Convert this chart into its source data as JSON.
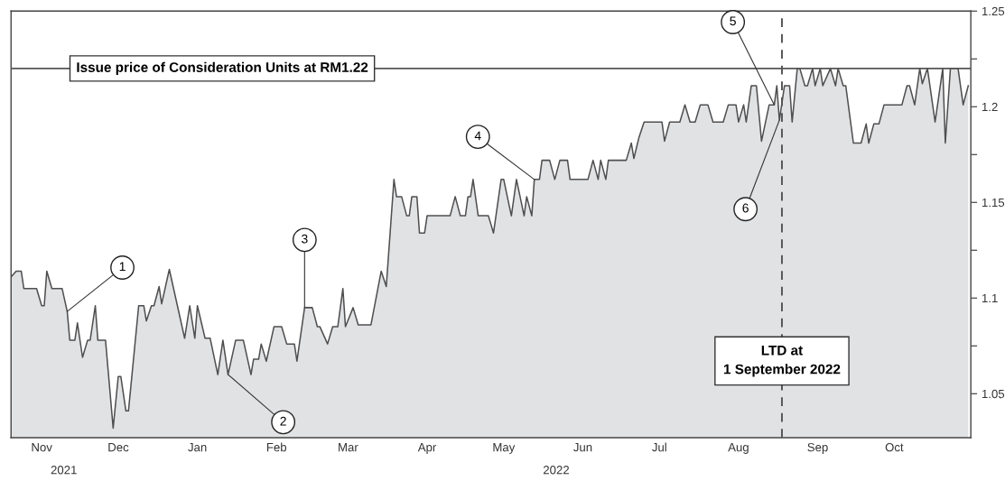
{
  "chart_data": {
    "type": "area",
    "x": [
      "2021-11-03",
      "2021-11-05",
      "2021-11-07",
      "2021-11-08",
      "2021-11-13",
      "2021-11-15",
      "2021-11-16",
      "2021-11-17",
      "2021-11-19",
      "2021-11-23",
      "2021-11-25",
      "2021-11-26",
      "2021-11-28",
      "2021-11-29",
      "2021-12-01",
      "2021-12-03",
      "2021-12-04",
      "2021-12-06",
      "2021-12-07",
      "2021-12-10",
      "2021-12-13",
      "2021-12-15",
      "2021-12-16",
      "2021-12-18",
      "2021-12-19",
      "2021-12-23",
      "2021-12-25",
      "2021-12-26",
      "2021-12-28",
      "2021-12-29",
      "2021-12-31",
      "2022-01-01",
      "2022-01-04",
      "2022-01-10",
      "2022-01-12",
      "2022-01-14",
      "2022-01-15",
      "2022-01-18",
      "2022-01-20",
      "2022-01-23",
      "2022-01-25",
      "2022-01-27",
      "2022-01-30",
      "2022-02-02",
      "2022-02-05",
      "2022-02-06",
      "2022-02-08",
      "2022-02-09",
      "2022-02-11",
      "2022-02-14",
      "2022-02-17",
      "2022-02-19",
      "2022-02-22",
      "2022-02-23",
      "2022-02-26",
      "2022-03-01",
      "2022-03-03",
      "2022-03-04",
      "2022-03-07",
      "2022-03-09",
      "2022-03-11",
      "2022-03-13",
      "2022-03-14",
      "2022-03-17",
      "2022-03-19",
      "2022-03-24",
      "2022-03-28",
      "2022-03-30",
      "2022-04-02",
      "2022-04-03",
      "2022-04-05",
      "2022-04-07",
      "2022-04-08",
      "2022-04-09",
      "2022-04-11",
      "2022-04-12",
      "2022-04-14",
      "2022-04-15",
      "2022-04-24",
      "2022-04-26",
      "2022-04-28",
      "2022-04-30",
      "2022-05-01",
      "2022-05-02",
      "2022-05-03",
      "2022-05-05",
      "2022-05-09",
      "2022-05-11",
      "2022-05-14",
      "2022-05-15",
      "2022-05-18",
      "2022-05-20",
      "2022-05-23",
      "2022-05-24",
      "2022-05-26",
      "2022-05-27",
      "2022-05-29",
      "2022-05-30",
      "2022-06-02",
      "2022-06-04",
      "2022-06-06",
      "2022-06-09",
      "2022-06-10",
      "2022-06-17",
      "2022-06-19",
      "2022-06-21",
      "2022-06-22",
      "2022-06-24",
      "2022-06-25",
      "2022-07-02",
      "2022-07-04",
      "2022-07-05",
      "2022-07-07",
      "2022-07-09",
      "2022-07-12",
      "2022-07-16",
      "2022-07-17",
      "2022-07-19",
      "2022-07-23",
      "2022-07-25",
      "2022-07-27",
      "2022-07-29",
      "2022-07-31",
      "2022-08-03",
      "2022-08-05",
      "2022-08-09",
      "2022-08-11",
      "2022-08-14",
      "2022-08-15",
      "2022-08-17",
      "2022-08-18",
      "2022-08-20",
      "2022-08-22",
      "2022-08-24",
      "2022-08-27",
      "2022-08-29",
      "2022-08-30",
      "2022-08-31",
      "2022-09-02",
      "2022-09-04",
      "2022-09-05",
      "2022-09-07",
      "2022-09-08",
      "2022-09-10",
      "2022-09-11",
      "2022-09-13",
      "2022-09-14",
      "2022-09-16",
      "2022-09-17",
      "2022-09-20",
      "2022-09-22",
      "2022-09-23",
      "2022-09-25",
      "2022-09-26",
      "2022-09-29",
      "2022-10-02",
      "2022-10-04",
      "2022-10-05",
      "2022-10-07",
      "2022-10-09",
      "2022-10-11",
      "2022-10-18",
      "2022-10-20",
      "2022-10-21",
      "2022-10-23",
      "2022-10-25",
      "2022-10-26",
      "2022-10-28",
      "2022-10-31",
      "2022-11-03",
      "2022-11-04",
      "2022-11-06",
      "2022-11-09",
      "2022-11-11",
      "2022-11-13"
    ],
    "series": [
      {
        "color": "#e1e2e4",
        "values": [
          1.111,
          1.114,
          1.114,
          1.105,
          1.105,
          1.096,
          1.096,
          1.114,
          1.105,
          1.105,
          1.093,
          1.078,
          1.078,
          1.087,
          1.069,
          1.078,
          1.078,
          1.096,
          1.078,
          1.078,
          1.032,
          1.059,
          1.059,
          1.041,
          1.041,
          1.096,
          1.096,
          1.088,
          1.096,
          1.096,
          1.106,
          1.097,
          1.115,
          1.079,
          1.096,
          1.079,
          1.096,
          1.079,
          1.079,
          1.06,
          1.078,
          1.06,
          1.078,
          1.078,
          1.06,
          1.068,
          1.068,
          1.076,
          1.067,
          1.085,
          1.085,
          1.076,
          1.076,
          1.067,
          1.095,
          1.095,
          1.085,
          1.085,
          1.076,
          1.085,
          1.085,
          1.105,
          1.085,
          1.095,
          1.086,
          1.086,
          1.114,
          1.106,
          1.162,
          1.153,
          1.153,
          1.143,
          1.143,
          1.153,
          1.153,
          1.134,
          1.134,
          1.143,
          1.143,
          1.153,
          1.143,
          1.143,
          1.153,
          1.153,
          1.162,
          1.143,
          1.143,
          1.134,
          1.162,
          1.162,
          1.143,
          1.162,
          1.143,
          1.153,
          1.143,
          1.162,
          1.162,
          1.172,
          1.172,
          1.162,
          1.172,
          1.172,
          1.162,
          1.162,
          1.172,
          1.162,
          1.172,
          1.162,
          1.172,
          1.172,
          1.181,
          1.173,
          1.184,
          1.192,
          1.192,
          1.192,
          1.182,
          1.192,
          1.192,
          1.201,
          1.192,
          1.192,
          1.201,
          1.201,
          1.192,
          1.192,
          1.201,
          1.201,
          1.192,
          1.201,
          1.192,
          1.211,
          1.211,
          1.182,
          1.201,
          1.201,
          1.211,
          1.193,
          1.211,
          1.211,
          1.192,
          1.22,
          1.22,
          1.211,
          1.211,
          1.22,
          1.211,
          1.22,
          1.211,
          1.22,
          1.211,
          1.22,
          1.211,
          1.211,
          1.181,
          1.181,
          1.191,
          1.181,
          1.191,
          1.191,
          1.201,
          1.201,
          1.211,
          1.211,
          1.201,
          1.22,
          1.212,
          1.22,
          1.192,
          1.22,
          1.181,
          1.22,
          1.22,
          1.201,
          1.211
        ]
      }
    ],
    "xlim": [
      "2021-11-03",
      "2022-11-14"
    ],
    "xticks": [
      {
        "value": "2021-11-15",
        "label": "Nov"
      },
      {
        "value": "2021-12-15",
        "label": "Dec"
      },
      {
        "value": "2022-01-15",
        "label": "Jan"
      },
      {
        "value": "2022-02-15",
        "label": "Feb"
      },
      {
        "value": "2022-03-15",
        "label": "Mar"
      },
      {
        "value": "2022-04-15",
        "label": "Apr"
      },
      {
        "value": "2022-05-15",
        "label": "May"
      },
      {
        "value": "2022-06-15",
        "label": "Jun"
      },
      {
        "value": "2022-07-15",
        "label": "Jul"
      },
      {
        "value": "2022-08-15",
        "label": "Aug"
      },
      {
        "value": "2022-09-15",
        "label": "Sep"
      },
      {
        "value": "2022-10-15",
        "label": "Oct"
      }
    ],
    "ylim": [
      1.027,
      1.25
    ],
    "yticks": [
      1.05,
      {
        "value": 1.075,
        "label": null
      },
      1.1,
      {
        "value": 1.125,
        "label": null
      },
      1.15,
      {
        "value": 1.175,
        "label": null
      },
      1.2,
      {
        "value": 1.225,
        "label": null
      },
      1.25
    ],
    "ref_lines": [
      {
        "axis": "y",
        "value": 1.22,
        "label": "Issue price of Consideration Units at RM1.22",
        "color": "#555555",
        "line_style": "solid"
      },
      {
        "axis": "x",
        "value": "2022-09-01",
        "label": "LTD at\n1 September 2022",
        "color": "#555555",
        "line_style": "dashed"
      }
    ],
    "annotations": [
      {
        "text": "1",
        "x": "2021-11-25",
        "y": 1.093
      },
      {
        "text": "2",
        "x": "2022-01-27",
        "y": 1.06
      },
      {
        "text": "3",
        "x": "2022-02-26",
        "y": 1.095
      },
      {
        "text": "4",
        "x": "2022-05-27",
        "y": 1.162
      },
      {
        "text": "5",
        "x": "2022-08-29",
        "y": 1.201
      },
      {
        "text": "6",
        "x": "2022-08-31",
        "y": 1.193
      },
      "2021",
      "2022"
    ],
    "grid": false,
    "legend": false
  }
}
